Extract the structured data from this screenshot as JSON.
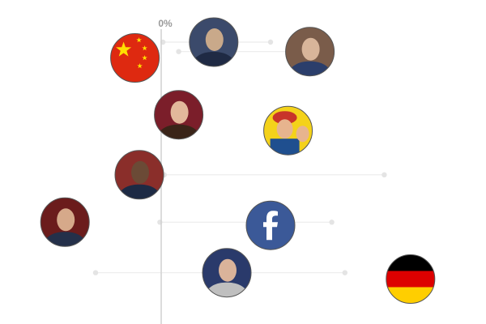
{
  "chart_data": {
    "type": "scatter",
    "axis": {
      "zero_label": "0%"
    },
    "items": [
      {
        "id": "bob-dole",
        "icon": "bob-dole-portrait",
        "line": [
          0.4,
          25
        ],
        "value": 12,
        "row": 0.0,
        "colors": [
          "#3b4a6b",
          "#c9a98a",
          "#1f2a44"
        ]
      },
      {
        "id": "al-gore",
        "icon": "al-gore-portrait",
        "line": [
          4,
          35
        ],
        "value": 34,
        "row": 0.3,
        "colors": [
          "#7a5c4a",
          "#d8b59a",
          "#2b3e6b"
        ]
      },
      {
        "id": "china",
        "icon": "china-flag",
        "line": null,
        "value": -6,
        "row": 0.5,
        "colors": [
          "#de2910",
          "#ffde00"
        ]
      },
      {
        "id": "melania-trump",
        "icon": "melania-trump-portrait",
        "line": null,
        "value": 4,
        "row": 2.3,
        "colors": [
          "#7b1e2a",
          "#e2b89b",
          "#3a2418"
        ]
      },
      {
        "id": "rosie-riveter",
        "icon": "rosie-riveter-poster",
        "line": null,
        "value": 29,
        "row": 2.8,
        "colors": [
          "#f4d21a",
          "#c8342a",
          "#1f4f8f"
        ]
      },
      {
        "id": "barack-obama",
        "icon": "barack-obama-portrait",
        "line": [
          0.7,
          51
        ],
        "value": -5,
        "row": 4.2,
        "colors": [
          "#8a2e2a",
          "#6b4a36",
          "#1d2a44"
        ]
      },
      {
        "id": "george-w-bush",
        "icon": "george-bush-portrait",
        "line": [
          -0.3,
          39
        ],
        "value": -22,
        "row": 5.7,
        "colors": [
          "#6b1c1c",
          "#d6a98a",
          "#24304a"
        ]
      },
      {
        "id": "facebook",
        "icon": "facebook-logo",
        "line": null,
        "value": 25,
        "row": 5.8,
        "colors": [
          "#3b5998",
          "#ffffff"
        ]
      },
      {
        "id": "bill-clinton",
        "icon": "bill-clinton-portrait",
        "line": [
          -15,
          42
        ],
        "value": 15,
        "row": 7.3,
        "colors": [
          "#2a3a6b",
          "#dab39a",
          "#bfbfbf"
        ]
      },
      {
        "id": "germany",
        "icon": "germany-flag",
        "line": null,
        "value": 57,
        "row": 7.5,
        "colors": [
          "#000000",
          "#dd0000",
          "#ffce00"
        ]
      }
    ]
  }
}
